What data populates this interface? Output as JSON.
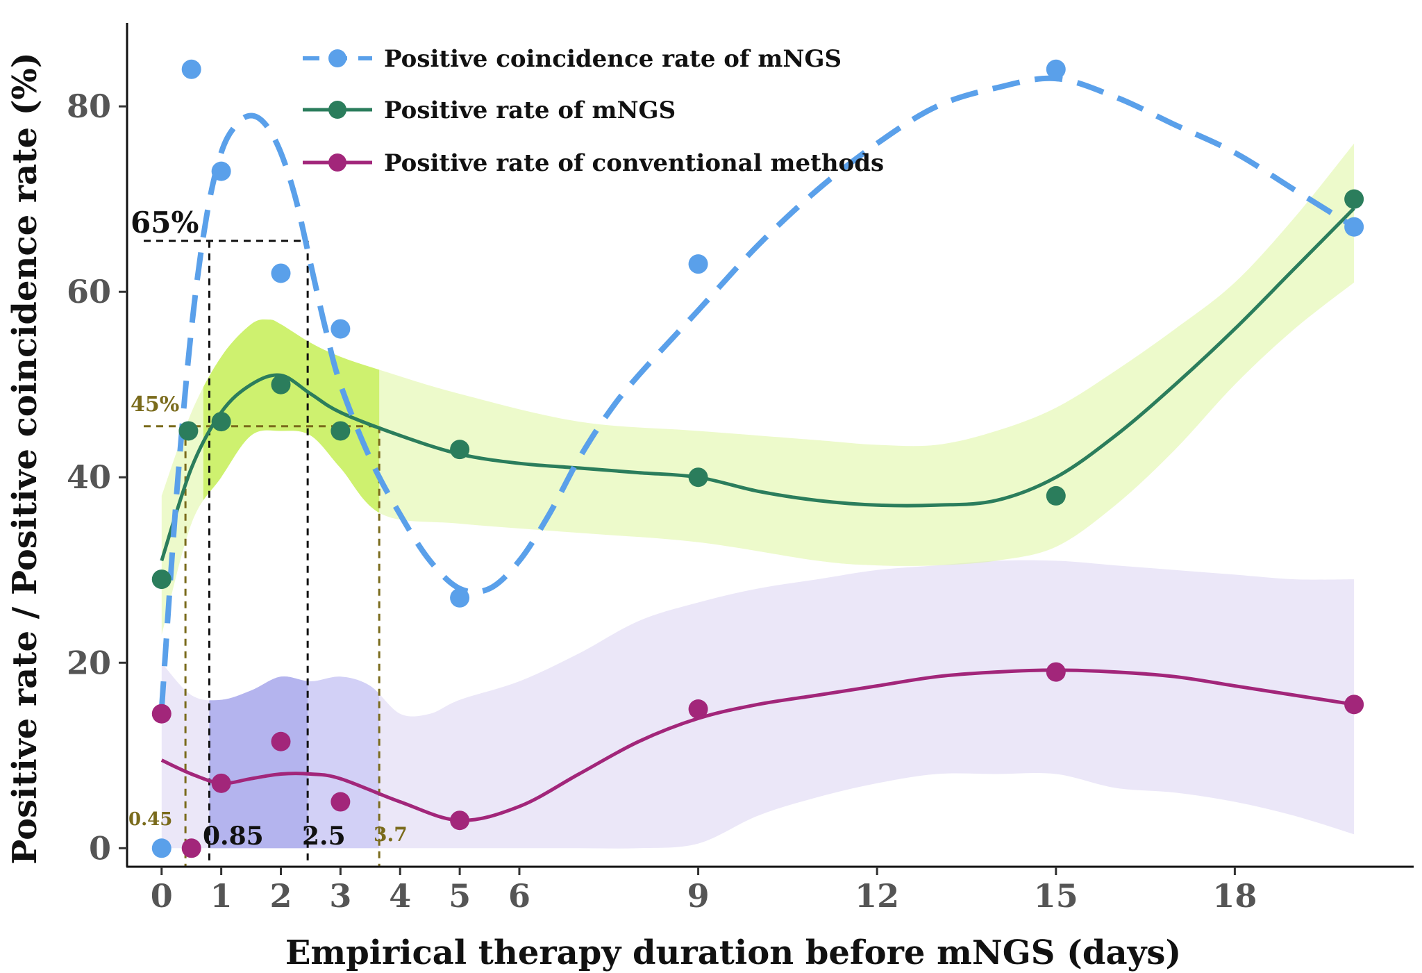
{
  "chart_data": {
    "type": "scatter",
    "xlabel": "Empirical therapy duration before mNGS (days)",
    "ylabel": "Positive rate / Positive coincidence rate (%)",
    "xlim": [
      -0.3,
      21
    ],
    "ylim": [
      -2,
      89
    ],
    "x_ticks": [
      0,
      1,
      2,
      3,
      4,
      5,
      6,
      9,
      12,
      15,
      18
    ],
    "y_ticks": [
      0,
      20,
      40,
      60,
      80
    ],
    "grid": false,
    "legend_position": "top",
    "series": [
      {
        "name": "Positive coincidence rate of mNGS",
        "color": "#5aa0ea",
        "line_style": "dashed",
        "points": [
          [
            0,
            0
          ],
          [
            0.5,
            84
          ],
          [
            1,
            73
          ],
          [
            2,
            62
          ],
          [
            3,
            56
          ],
          [
            5,
            27
          ],
          [
            9,
            63
          ],
          [
            15,
            84
          ],
          [
            20,
            67
          ]
        ],
        "fit": [
          [
            0,
            15
          ],
          [
            0.25,
            38
          ],
          [
            0.5,
            56
          ],
          [
            0.75,
            68
          ],
          [
            1,
            75
          ],
          [
            1.25,
            78
          ],
          [
            1.5,
            79
          ],
          [
            1.75,
            78
          ],
          [
            2,
            75
          ],
          [
            2.25,
            70
          ],
          [
            2.5,
            63
          ],
          [
            2.75,
            56
          ],
          [
            3,
            50
          ],
          [
            3.5,
            42
          ],
          [
            4,
            36
          ],
          [
            4.5,
            31
          ],
          [
            5,
            28
          ],
          [
            5.5,
            28
          ],
          [
            6,
            31
          ],
          [
            6.5,
            36
          ],
          [
            7,
            42
          ],
          [
            7.5,
            47
          ],
          [
            8,
            51
          ],
          [
            9,
            58
          ],
          [
            10,
            65
          ],
          [
            11,
            71
          ],
          [
            12,
            76
          ],
          [
            13,
            80
          ],
          [
            14,
            82
          ],
          [
            15,
            83
          ],
          [
            16,
            81
          ],
          [
            17,
            78
          ],
          [
            18,
            75
          ],
          [
            19,
            71
          ],
          [
            20,
            67
          ]
        ]
      },
      {
        "name": "Positive rate of mNGS",
        "color": "#2b7d5c",
        "line_style": "solid",
        "band_color": "#dff5a0",
        "band_highlight_color": "#c3ee50",
        "points": [
          [
            0,
            29
          ],
          [
            0.45,
            45
          ],
          [
            1,
            46
          ],
          [
            2,
            50
          ],
          [
            3,
            45
          ],
          [
            5,
            43
          ],
          [
            9,
            40
          ],
          [
            15,
            38
          ],
          [
            20,
            70
          ]
        ],
        "fit": [
          [
            0,
            31
          ],
          [
            0.5,
            41
          ],
          [
            1,
            47
          ],
          [
            1.5,
            50
          ],
          [
            2,
            51
          ],
          [
            2.5,
            49
          ],
          [
            3,
            47
          ],
          [
            4,
            44.5
          ],
          [
            5,
            42.5
          ],
          [
            6,
            41.5
          ],
          [
            7,
            41
          ],
          [
            8,
            40.5
          ],
          [
            9,
            40
          ],
          [
            10,
            38.5
          ],
          [
            11,
            37.5
          ],
          [
            12,
            37
          ],
          [
            13,
            37
          ],
          [
            14,
            37.5
          ],
          [
            15,
            40
          ],
          [
            16,
            44.5
          ],
          [
            17,
            50
          ],
          [
            18,
            56
          ],
          [
            19,
            62.5
          ],
          [
            20,
            69
          ]
        ],
        "ci_upper": [
          [
            0,
            38
          ],
          [
            0.5,
            47
          ],
          [
            1,
            53
          ],
          [
            1.5,
            56.5
          ],
          [
            1.8,
            57
          ],
          [
            2,
            56.5
          ],
          [
            2.5,
            54.5
          ],
          [
            3,
            53
          ],
          [
            3.7,
            51.5
          ],
          [
            5,
            49
          ],
          [
            7,
            46
          ],
          [
            9,
            45
          ],
          [
            11,
            44
          ],
          [
            12,
            43.5
          ],
          [
            13,
            43.5
          ],
          [
            14,
            45
          ],
          [
            15,
            47.5
          ],
          [
            16,
            51.5
          ],
          [
            17,
            56
          ],
          [
            18,
            61
          ],
          [
            19,
            68
          ],
          [
            20,
            76
          ]
        ],
        "ci_lower": [
          [
            0,
            23
          ],
          [
            0.5,
            35
          ],
          [
            1,
            40
          ],
          [
            1.5,
            44.5
          ],
          [
            2,
            45
          ],
          [
            2.5,
            44.5
          ],
          [
            3,
            41
          ],
          [
            3.7,
            36
          ],
          [
            5,
            35
          ],
          [
            7,
            34
          ],
          [
            9,
            33
          ],
          [
            11,
            31
          ],
          [
            12,
            30.5
          ],
          [
            13,
            30.5
          ],
          [
            14,
            31
          ],
          [
            15,
            32.5
          ],
          [
            16,
            37
          ],
          [
            17,
            43
          ],
          [
            18,
            50
          ],
          [
            19,
            56
          ],
          [
            20,
            61
          ]
        ]
      },
      {
        "name": "Positive rate of conventional methods",
        "color": "#a2267a",
        "line_style": "solid",
        "band_color": "#ebe7f8",
        "band_highlight_color": "#b4b4ee",
        "points": [
          [
            0,
            14.5
          ],
          [
            0.5,
            0
          ],
          [
            1,
            7
          ],
          [
            2,
            11.5
          ],
          [
            3,
            5
          ],
          [
            5,
            3
          ],
          [
            9,
            15
          ],
          [
            15,
            19
          ],
          [
            20,
            15.5
          ]
        ],
        "fit": [
          [
            0,
            9.5
          ],
          [
            0.5,
            8
          ],
          [
            1,
            7
          ],
          [
            1.5,
            7.5
          ],
          [
            2,
            8
          ],
          [
            2.5,
            8
          ],
          [
            3,
            7.5
          ],
          [
            4,
            5
          ],
          [
            5,
            3
          ],
          [
            6,
            4.5
          ],
          [
            7,
            8
          ],
          [
            8,
            11.5
          ],
          [
            9,
            14
          ],
          [
            10,
            15.5
          ],
          [
            11,
            16.5
          ],
          [
            12,
            17.5
          ],
          [
            13,
            18.5
          ],
          [
            14,
            19
          ],
          [
            15,
            19.2
          ],
          [
            16,
            19
          ],
          [
            17,
            18.5
          ],
          [
            18,
            17.5
          ],
          [
            19,
            16.5
          ],
          [
            20,
            15.5
          ]
        ],
        "ci_upper": [
          [
            0,
            20
          ],
          [
            0.5,
            16.5
          ],
          [
            1,
            16
          ],
          [
            1.5,
            17
          ],
          [
            2,
            18.5
          ],
          [
            2.5,
            18
          ],
          [
            3,
            18.5
          ],
          [
            3.5,
            17.5
          ],
          [
            4,
            14.5
          ],
          [
            4.5,
            14.5
          ],
          [
            5,
            16
          ],
          [
            6,
            18
          ],
          [
            7,
            21
          ],
          [
            8,
            24.5
          ],
          [
            9,
            26.5
          ],
          [
            10,
            28
          ],
          [
            11,
            29
          ],
          [
            12,
            30
          ],
          [
            13,
            30.5
          ],
          [
            14,
            31
          ],
          [
            15,
            31
          ],
          [
            16,
            30.5
          ],
          [
            17,
            30
          ],
          [
            18,
            29.5
          ],
          [
            19,
            29
          ],
          [
            20,
            29
          ]
        ],
        "ci_lower": [
          [
            0,
            0
          ],
          [
            1,
            0
          ],
          [
            2,
            0
          ],
          [
            3,
            0
          ],
          [
            4,
            0
          ],
          [
            5,
            0
          ],
          [
            6,
            0
          ],
          [
            7,
            0
          ],
          [
            8,
            0
          ],
          [
            9,
            0.5
          ],
          [
            10,
            3.5
          ],
          [
            11,
            5.5
          ],
          [
            12,
            7
          ],
          [
            13,
            8
          ],
          [
            14,
            8
          ],
          [
            15,
            8
          ],
          [
            16,
            6.5
          ],
          [
            17,
            6
          ],
          [
            18,
            5
          ],
          [
            19,
            3.5
          ],
          [
            20,
            1.5
          ]
        ]
      }
    ],
    "annotations": [
      {
        "text": "65%",
        "x": 0,
        "y": 65.5,
        "color": "#111111"
      },
      {
        "text": "45%",
        "x": 0,
        "y": 45.5,
        "color": "#7a6b1c"
      },
      {
        "text": "0.45",
        "x": 0.4,
        "y": 0,
        "color": "#7a6b1c"
      },
      {
        "text": "0.85",
        "x": 0.8,
        "y": 0,
        "color": "#111111"
      },
      {
        "text": "2.5",
        "x": 2.45,
        "y": 0,
        "color": "#111111"
      },
      {
        "text": "3.7",
        "x": 3.65,
        "y": 0,
        "color": "#7a6b1c"
      }
    ],
    "reference_boxes": [
      {
        "color": "#111111",
        "x_from": 0.8,
        "x_to": 2.45,
        "y": 65.5
      },
      {
        "color": "#7a6b1c",
        "x_from": 0.4,
        "x_to": 3.65,
        "y": 45.5
      }
    ]
  }
}
